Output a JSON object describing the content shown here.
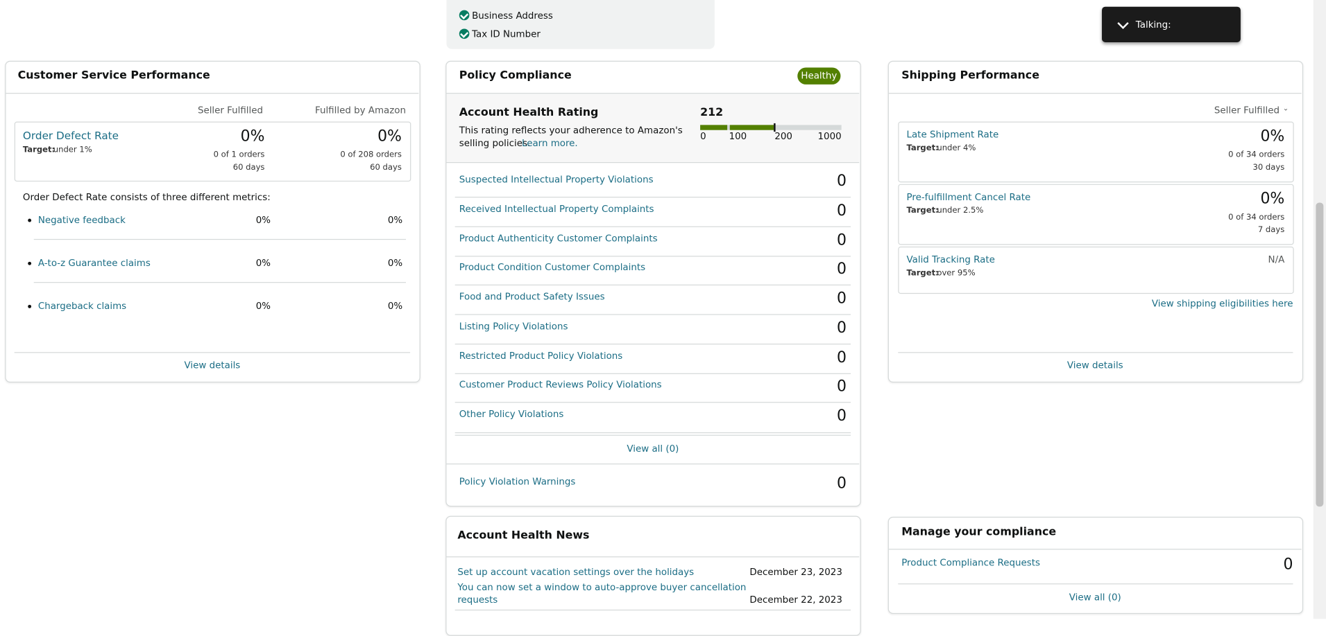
{
  "top_card": {
    "items": [
      "Business Address",
      "Tax ID Number"
    ]
  },
  "talking": "Talking:",
  "customer_service": {
    "title": "Customer Service Performance",
    "columns": [
      "Seller Fulfilled",
      "Fulfilled by Amazon"
    ],
    "odr": {
      "name": "Order Defect Rate",
      "target_label": "Target:",
      "target_value": "under 1%",
      "seller": {
        "value": "0%",
        "orders": "0 of 1 orders",
        "days": "60 days"
      },
      "fba": {
        "value": "0%",
        "orders": "0 of 208 orders",
        "days": "60 days"
      }
    },
    "description": "Order Defect Rate consists of three different metrics:",
    "metrics": [
      {
        "name": "Negative feedback",
        "seller": "0%",
        "fba": "0%"
      },
      {
        "name": "A-to-z Guarantee claims",
        "seller": "0%",
        "fba": "0%"
      },
      {
        "name": "Chargeback claims",
        "seller": "0%",
        "fba": "0%"
      }
    ],
    "view_details": "View details"
  },
  "policy": {
    "title": "Policy Compliance",
    "badge": "Healthy",
    "ahr_title": "Account Health Rating",
    "rating": 212,
    "description_1": "This rating reflects your adherence to Amazon's",
    "description_2": "selling policies.",
    "learn_more": "Learn more.",
    "scale": [
      "0",
      "100",
      "200",
      "1000"
    ],
    "violations": [
      {
        "name": "Suspected Intellectual Property Violations",
        "count": 0
      },
      {
        "name": "Received Intellectual Property Complaints",
        "count": 0
      },
      {
        "name": "Product Authenticity Customer Complaints",
        "count": 0
      },
      {
        "name": "Product Condition Customer Complaints",
        "count": 0
      },
      {
        "name": "Food and Product Safety Issues",
        "count": 0
      },
      {
        "name": "Listing Policy Violations",
        "count": 0
      },
      {
        "name": "Restricted Product Policy Violations",
        "count": 0
      },
      {
        "name": "Customer Product Reviews Policy Violations",
        "count": 0
      },
      {
        "name": "Other Policy Violations",
        "count": 0
      }
    ],
    "view_all": "View all (0)",
    "warnings": {
      "name": "Policy Violation Warnings",
      "count": 0
    }
  },
  "news": {
    "title": "Account Health News",
    "items": [
      {
        "text": [
          "Set up account vacation settings over the holidays"
        ],
        "date": "December 23, 2023"
      },
      {
        "text": [
          "You can now set a window to auto-approve buyer cancellation",
          "requests"
        ],
        "date": "December 22, 2023"
      }
    ]
  },
  "shipping": {
    "title": "Shipping Performance",
    "filter": "Seller Fulfilled",
    "metrics": [
      {
        "name": "Late Shipment Rate",
        "target_label": "Target:",
        "target_value": "under 4%",
        "value": "0%",
        "orders": "0 of 34 orders",
        "days": "30 days"
      },
      {
        "name": "Pre-fulfillment Cancel Rate",
        "target_label": "Target:",
        "target_value": "under 2.5%",
        "value": "0%",
        "orders": "0 of 34 orders",
        "days": "7 days"
      },
      {
        "name": "Valid Tracking Rate",
        "target_label": "Target:",
        "target_value": "over 95%",
        "value": "N/A"
      }
    ],
    "eligibilities": "View shipping eligibilities here",
    "view_details": "View details"
  },
  "compliance": {
    "title": "Manage your compliance",
    "item": {
      "name": "Product Compliance Requests",
      "count": 0
    },
    "view_all": "View all (0)"
  }
}
